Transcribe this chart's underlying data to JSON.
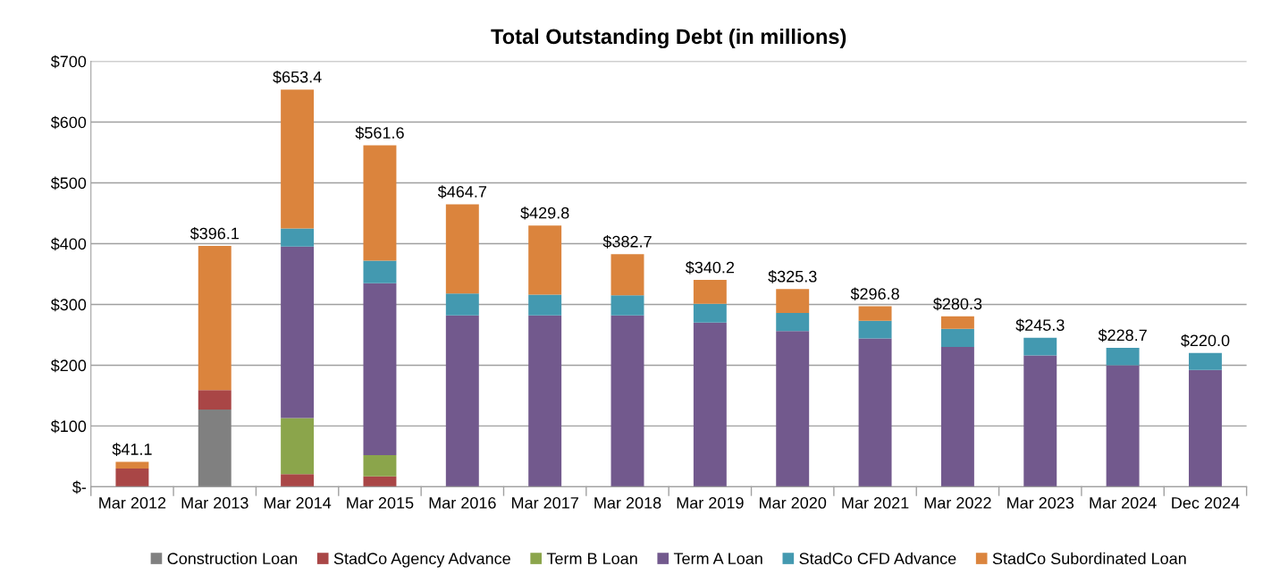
{
  "chart_data": {
    "type": "bar",
    "title": "Total Outstanding Debt (in millions)",
    "stacked": true,
    "categories": [
      "Mar 2012",
      "Mar 2013",
      "Mar 2014",
      "Mar 2015",
      "Mar 2016",
      "Mar 2017",
      "Mar 2018",
      "Mar 2019",
      "Mar 2020",
      "Mar 2021",
      "Mar 2022",
      "Mar 2023",
      "Mar 2024",
      "Dec 2024"
    ],
    "series": [
      {
        "name": "Construction Loan",
        "color": "#808080",
        "values": [
          null,
          127,
          null,
          null,
          null,
          null,
          null,
          null,
          null,
          null,
          null,
          null,
          null,
          null
        ]
      },
      {
        "name": "StadCo Agency Advance",
        "color": "#a94646",
        "values": [
          30,
          32,
          21,
          17,
          null,
          null,
          null,
          null,
          null,
          null,
          null,
          null,
          null,
          null
        ]
      },
      {
        "name": "Term B Loan",
        "color": "#8ba54b",
        "values": [
          null,
          null,
          92,
          35,
          null,
          null,
          null,
          null,
          null,
          null,
          null,
          null,
          null,
          null
        ]
      },
      {
        "name": "Term A Loan",
        "color": "#72598d",
        "values": [
          null,
          null,
          282,
          283,
          282,
          282,
          282,
          270,
          256,
          244,
          230,
          216,
          200,
          192
        ]
      },
      {
        "name": "StadCo CFD Advance",
        "color": "#4399b0",
        "values": [
          null,
          null,
          30,
          37,
          36,
          34,
          33,
          31,
          30,
          29,
          30,
          29.3,
          28.7,
          28
        ]
      },
      {
        "name": "StadCo Subordinated Loan",
        "color": "#db843d",
        "values": [
          11.1,
          237.1,
          228.4,
          189.6,
          146.7,
          113.8,
          67.7,
          39.2,
          39.3,
          23.8,
          20.3,
          null,
          null,
          null
        ]
      }
    ],
    "totals": [
      "$41.1",
      "$396.1",
      "$653.4",
      "$561.6",
      "$464.7",
      "$429.8",
      "$382.7",
      "$340.2",
      "$325.3",
      "$296.8",
      "$280.3",
      "$245.3",
      "$228.7",
      "$220.0"
    ],
    "ylim": [
      0,
      700
    ],
    "yticks": [
      {
        "value": 0,
        "label": "$-"
      },
      {
        "value": 100,
        "label": "$100"
      },
      {
        "value": 200,
        "label": "$200"
      },
      {
        "value": 300,
        "label": "$300"
      },
      {
        "value": 400,
        "label": "$400"
      },
      {
        "value": 500,
        "label": "$500"
      },
      {
        "value": 600,
        "label": "$600"
      },
      {
        "value": 700,
        "label": "$700"
      }
    ],
    "grid": "y",
    "legend": "bottom"
  }
}
